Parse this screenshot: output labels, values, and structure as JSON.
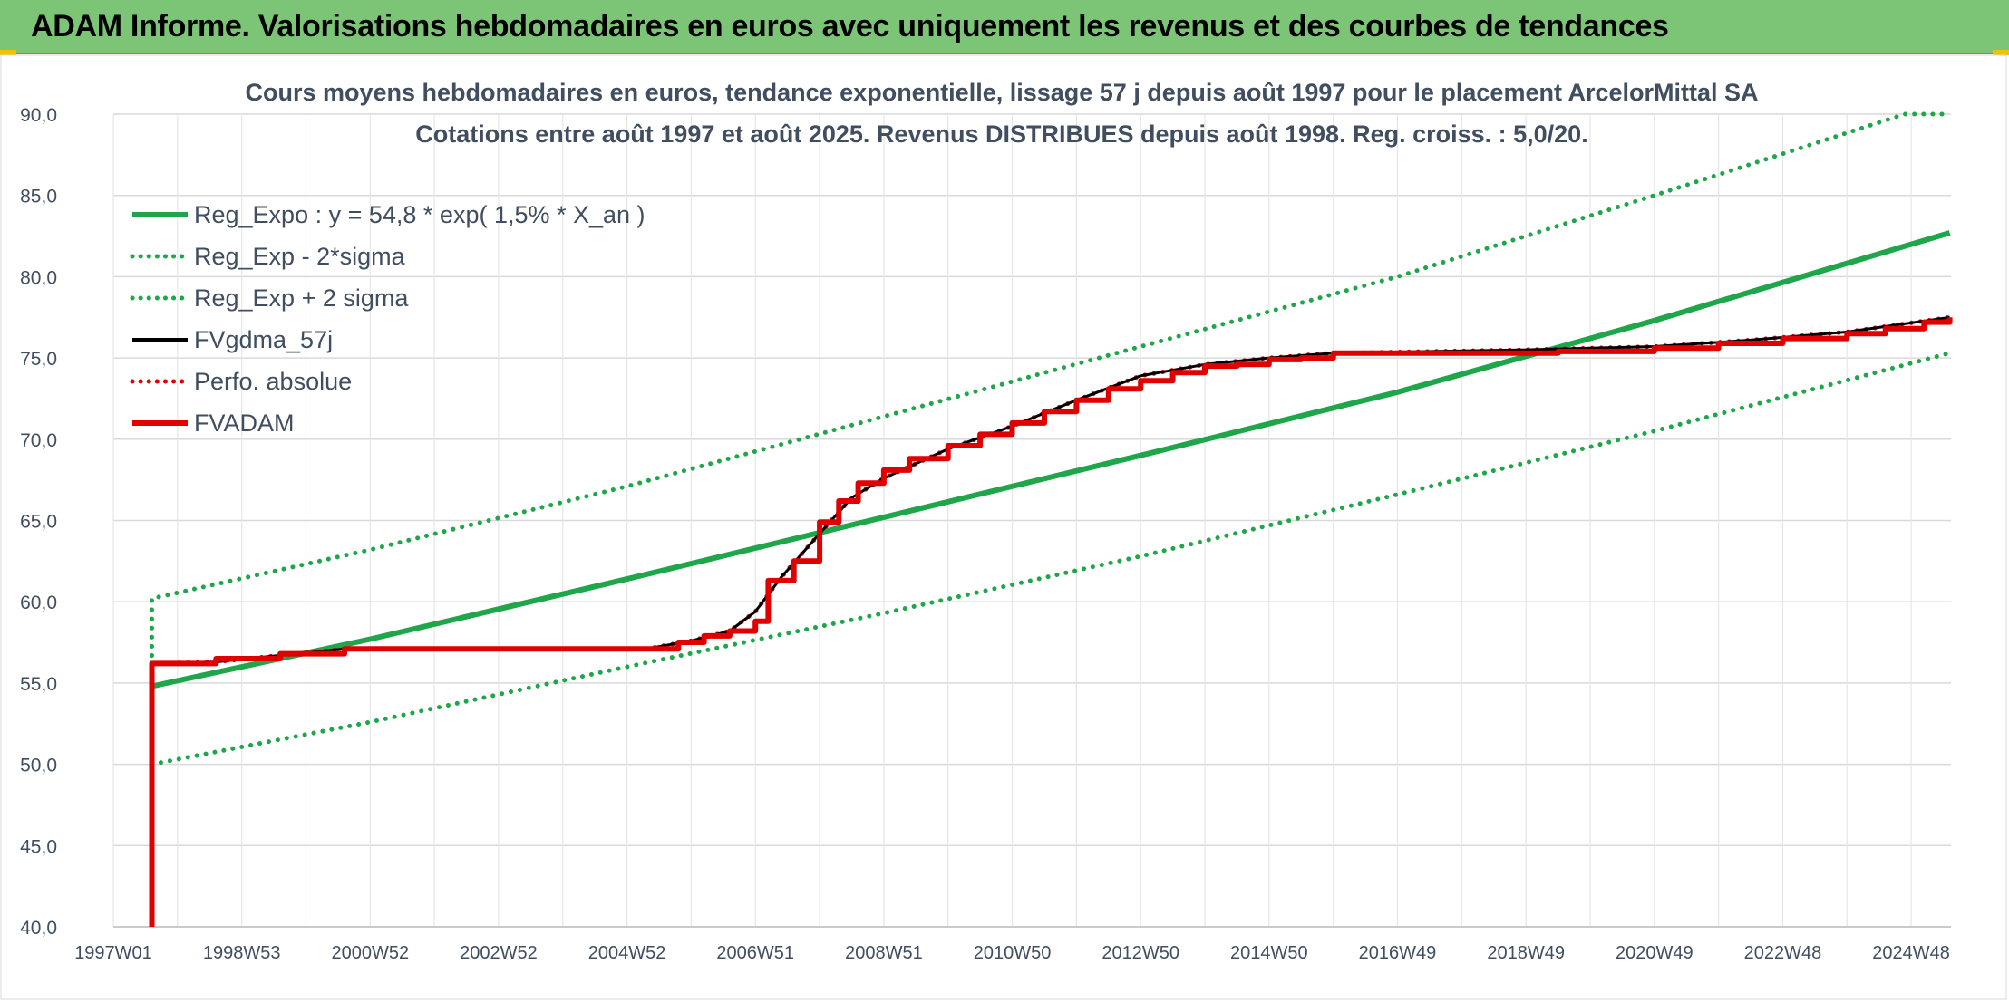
{
  "header": {
    "title": "ADAM Informe. Valorisations hebdomadaires en euros avec uniquement les revenus et des courbes de tendances"
  },
  "chart_data": {
    "type": "line",
    "title": "Cours moyens hebdomadaires en euros, tendance exponentielle, lissage 57 j depuis août 1997 pour le placement ArcelorMittal SA",
    "subtitle": "Cotations entre août 1997 et août 2025. Revenus DISTRIBUES depuis août 1998. Reg. croiss. : 5,0/20.",
    "xlabel": "",
    "ylabel": "",
    "ylim": [
      40,
      90
    ],
    "yticks": [
      "40,0",
      "45,0",
      "50,0",
      "55,0",
      "60,0",
      "65,0",
      "70,0",
      "75,0",
      "80,0",
      "85,0",
      "90,0"
    ],
    "xlim": [
      1997.0,
      2025.62
    ],
    "xticks": [
      {
        "label": "1997W01",
        "x": 1997.0
      },
      {
        "label": "1998W53",
        "x": 1999.0
      },
      {
        "label": "2000W52",
        "x": 2001.0
      },
      {
        "label": "2002W52",
        "x": 2003.0
      },
      {
        "label": "2004W52",
        "x": 2005.0
      },
      {
        "label": "2006W51",
        "x": 2007.0
      },
      {
        "label": "2008W51",
        "x": 2009.0
      },
      {
        "label": "2010W50",
        "x": 2011.0
      },
      {
        "label": "2012W50",
        "x": 2013.0
      },
      {
        "label": "2014W50",
        "x": 2015.0
      },
      {
        "label": "2016W49",
        "x": 2017.0
      },
      {
        "label": "2018W49",
        "x": 2019.0
      },
      {
        "label": "2020W49",
        "x": 2021.0
      },
      {
        "label": "2022W48",
        "x": 2023.0
      },
      {
        "label": "2024W48",
        "x": 2025.0
      }
    ],
    "grid": true,
    "legend_position": "top-left",
    "series": [
      {
        "name": "Reg_Expo : y = 54,8 * exp( 1,5% *  X_an )",
        "color": "#1fa64a",
        "style": "solid",
        "x": [
          1997.6,
          2001.0,
          2005.0,
          2009.0,
          2013.0,
          2017.0,
          2021.0,
          2025.6
        ],
        "y": [
          54.8,
          57.7,
          61.4,
          65.2,
          69.0,
          72.9,
          77.3,
          82.7
        ]
      },
      {
        "name": "Reg_Exp - 2*sigma",
        "color": "#1fa64a",
        "style": "dotted",
        "x": [
          1997.6,
          2001.0,
          2005.0,
          2009.0,
          2013.0,
          2017.0,
          2021.0,
          2025.6
        ],
        "y": [
          50.0,
          52.6,
          56.0,
          59.3,
          62.8,
          66.6,
          70.5,
          75.3
        ]
      },
      {
        "name": "Reg_Exp + 2 sigma",
        "color": "#1fa64a",
        "style": "dotted",
        "x": [
          1997.6,
          1997.6,
          2001.0,
          2005.0,
          2009.0,
          2013.0,
          2017.0,
          2021.0,
          2024.9,
          2025.6
        ],
        "y": [
          55.0,
          60.2,
          63.2,
          67.1,
          71.4,
          75.7,
          80.0,
          85.0,
          90.0,
          90.0
        ]
      },
      {
        "name": "FVgdma_57j",
        "color": "#000000",
        "style": "solid",
        "x": [
          1997.6,
          1998.6,
          1999.6,
          2000.6,
          2005.3,
          2006.0,
          2006.6,
          2007.0,
          2007.4,
          2008.0,
          2008.5,
          2009.0,
          2010.0,
          2011.0,
          2012.0,
          2013.0,
          2014.0,
          2015.0,
          2016.0,
          2019.0,
          2021.0,
          2022.5,
          2024.0,
          2025.6
        ],
        "y": [
          56.2,
          56.3,
          56.7,
          57.1,
          57.1,
          57.6,
          58.2,
          59.4,
          61.5,
          64.2,
          66.4,
          67.6,
          69.4,
          70.8,
          72.4,
          73.9,
          74.6,
          75.0,
          75.3,
          75.5,
          75.7,
          76.1,
          76.6,
          77.5
        ]
      },
      {
        "name": "Perfo. absolue",
        "color": "#e00000",
        "style": "dotted",
        "x": [
          1997.6,
          1998.6,
          1999.6,
          2000.6,
          2005.3,
          2006.0,
          2006.6,
          2007.0,
          2007.4,
          2008.0,
          2008.5,
          2009.0,
          2010.0,
          2011.0,
          2012.0,
          2013.0,
          2014.0,
          2015.0,
          2016.0,
          2019.0,
          2021.0,
          2022.5,
          2024.0,
          2025.6
        ],
        "y": [
          56.2,
          56.3,
          56.7,
          57.1,
          57.1,
          57.6,
          58.2,
          59.4,
          61.5,
          64.2,
          66.4,
          67.6,
          69.4,
          70.8,
          72.4,
          73.9,
          74.6,
          75.0,
          75.3,
          75.5,
          75.7,
          76.1,
          76.6,
          77.5
        ]
      },
      {
        "name": "FVADAM",
        "color": "#e00000",
        "style": "step",
        "x": [
          1997.6,
          1997.6,
          1998.6,
          1999.6,
          2000.6,
          2005.3,
          2005.8,
          2006.2,
          2006.6,
          2007.0,
          2007.2,
          2007.6,
          2008.0,
          2008.3,
          2008.6,
          2009.0,
          2009.4,
          2010.0,
          2010.5,
          2011.0,
          2011.5,
          2012.0,
          2012.5,
          2013.0,
          2013.5,
          2014.0,
          2014.5,
          2015.0,
          2015.5,
          2016.0,
          2019.5,
          2021.0,
          2022.0,
          2023.0,
          2024.0,
          2024.6,
          2025.2,
          2025.6
        ],
        "y": [
          40.0,
          56.2,
          56.5,
          56.8,
          57.1,
          57.1,
          57.5,
          57.9,
          58.2,
          58.8,
          61.3,
          62.5,
          64.9,
          66.2,
          67.3,
          68.1,
          68.8,
          69.6,
          70.3,
          71.0,
          71.7,
          72.4,
          73.1,
          73.6,
          74.1,
          74.5,
          74.6,
          74.9,
          75.0,
          75.3,
          75.4,
          75.6,
          75.9,
          76.2,
          76.5,
          76.8,
          77.2,
          77.5
        ]
      }
    ]
  }
}
